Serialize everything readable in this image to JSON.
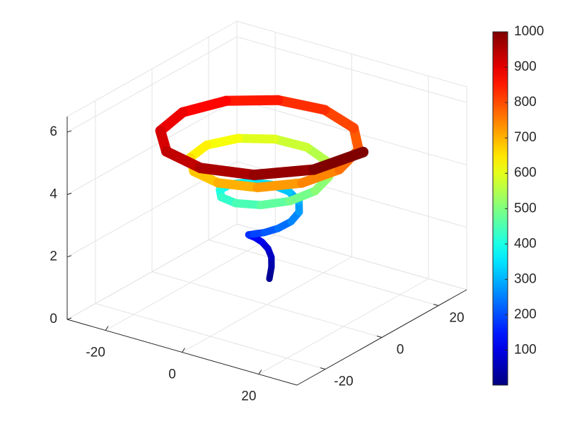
{
  "chart_data": {
    "type": "line3d",
    "colormap": "jet",
    "grid": true,
    "xlim": [
      -30,
      30
    ],
    "ylim": [
      -30,
      30
    ],
    "zlim": [
      0,
      6.5
    ],
    "xticks": [
      -20,
      0,
      20
    ],
    "yticks": [
      -20,
      0,
      20
    ],
    "zticks": [
      0,
      2,
      4,
      6
    ],
    "series": [
      {
        "x": [
          0.45,
          0.52,
          0,
          -1.05,
          -2.27,
          -3.14,
          -3.18,
          -2.09,
          0,
          2.62,
          4.99,
          6.28,
          5.9,
          3.67,
          0,
          -4.19,
          -7.71,
          -9.42,
          -8.62,
          -5.24,
          0,
          5.76,
          10.43,
          12.57,
          11.34,
          6.81,
          0,
          -7.33,
          -13.15,
          -15.71,
          -14.06,
          -8.38,
          0,
          8.9,
          15.87,
          18.85,
          16.78,
          9.95,
          0,
          -10.47,
          -18.59,
          -21.99,
          -19.5,
          -11.52,
          0,
          12.04,
          21.31,
          25.13
        ],
        "y": [
          0.26,
          0.91,
          1.57,
          1.81,
          1.31,
          0,
          -1.83,
          -3.63,
          -4.71,
          -4.53,
          -2.88,
          0,
          3.4,
          6.35,
          7.85,
          7.25,
          4.45,
          0,
          -4.97,
          -9.07,
          -11,
          -9.98,
          -6.02,
          0,
          6.54,
          11.79,
          14.14,
          12.7,
          7.59,
          0,
          -8.12,
          -14.51,
          -17.28,
          -15.42,
          -9.16,
          0,
          9.69,
          17.23,
          20.42,
          18.14,
          10.73,
          0,
          -11.26,
          -19.95,
          -23.56,
          -20.86,
          -12.3,
          0
        ],
        "z": [
          0.83,
          1.18,
          1.44,
          1.66,
          1.86,
          2.04,
          2.2,
          2.35,
          2.5,
          2.63,
          2.76,
          2.88,
          3,
          3.11,
          3.22,
          3.33,
          3.43,
          3.53,
          3.63,
          3.72,
          3.81,
          3.9,
          3.99,
          4.08,
          4.16,
          4.24,
          4.32,
          4.4,
          4.48,
          4.56,
          4.63,
          4.71,
          4.78,
          4.85,
          4.92,
          4.99,
          5.06,
          5.13,
          5.2,
          5.26,
          5.33,
          5.39,
          5.46,
          5.52,
          5.58,
          5.64,
          5.7,
          5.77
        ]
      }
    ],
    "colorbar": {
      "clim": [
        1,
        1000
      ],
      "ticks": [
        100,
        200,
        300,
        400,
        500,
        600,
        700,
        800,
        900,
        1000
      ]
    }
  }
}
